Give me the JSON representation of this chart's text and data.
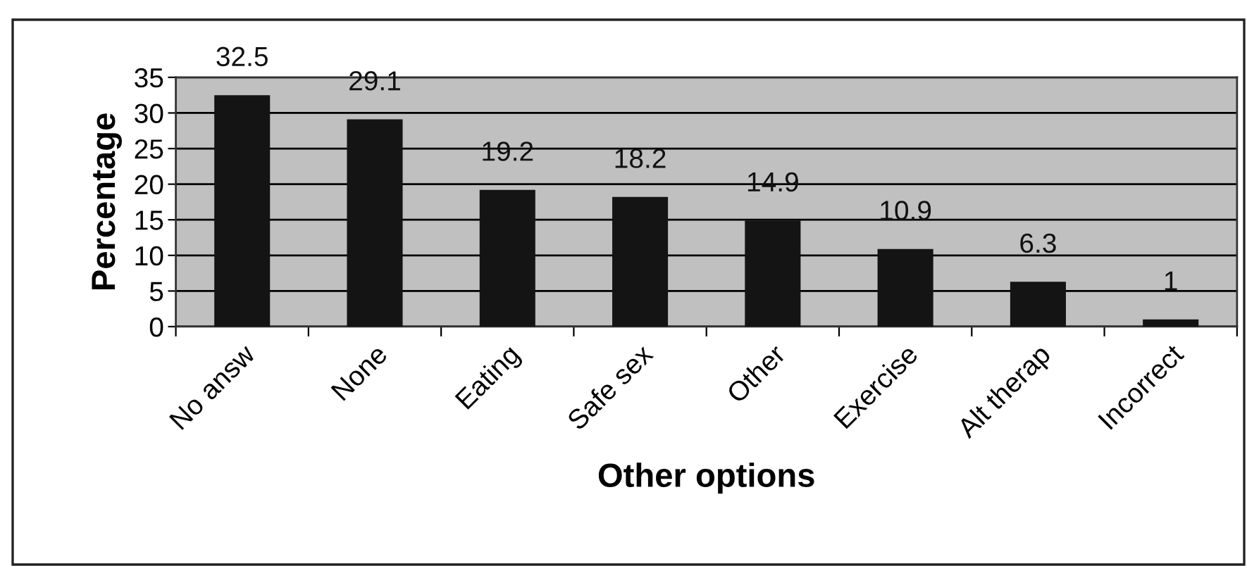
{
  "chart_data": {
    "type": "bar",
    "xlabel": "Other options",
    "ylabel": "Percentage",
    "categories": [
      "No answ",
      "None",
      "Eating",
      "Safe sex",
      "Other",
      "Exercise",
      "Alt therap",
      "Incorrect"
    ],
    "values": [
      32.5,
      29.1,
      19.2,
      18.2,
      14.9,
      10.9,
      6.3,
      1
    ],
    "color": "#141414",
    "ylim": [
      0,
      35
    ],
    "yticks": [
      0,
      5,
      10,
      15,
      20,
      25,
      30,
      35
    ],
    "grid": "y",
    "data_labels": true,
    "legend": false
  }
}
